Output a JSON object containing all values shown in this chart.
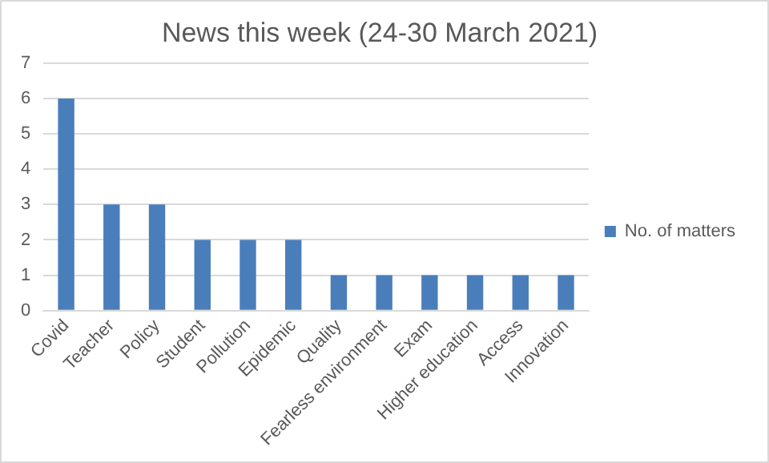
{
  "chart_data": {
    "type": "bar",
    "title": "News this week (24-30 March 2021)",
    "categories": [
      "Covid",
      "Teacher",
      "Policy",
      "Student",
      "Pollution",
      "Epidemic",
      "Quality",
      "Fearless environment",
      "Exam",
      "Higher education",
      "Access",
      "Innovation"
    ],
    "series": [
      {
        "name": "No. of matters",
        "color": "#4a7ebb",
        "values": [
          6,
          3,
          3,
          2,
          2,
          2,
          1,
          1,
          1,
          1,
          1,
          1
        ]
      }
    ],
    "ylim": [
      0,
      7
    ],
    "yticks": [
      0,
      1,
      2,
      3,
      4,
      5,
      6,
      7
    ],
    "grid": "y",
    "legend": "right"
  }
}
